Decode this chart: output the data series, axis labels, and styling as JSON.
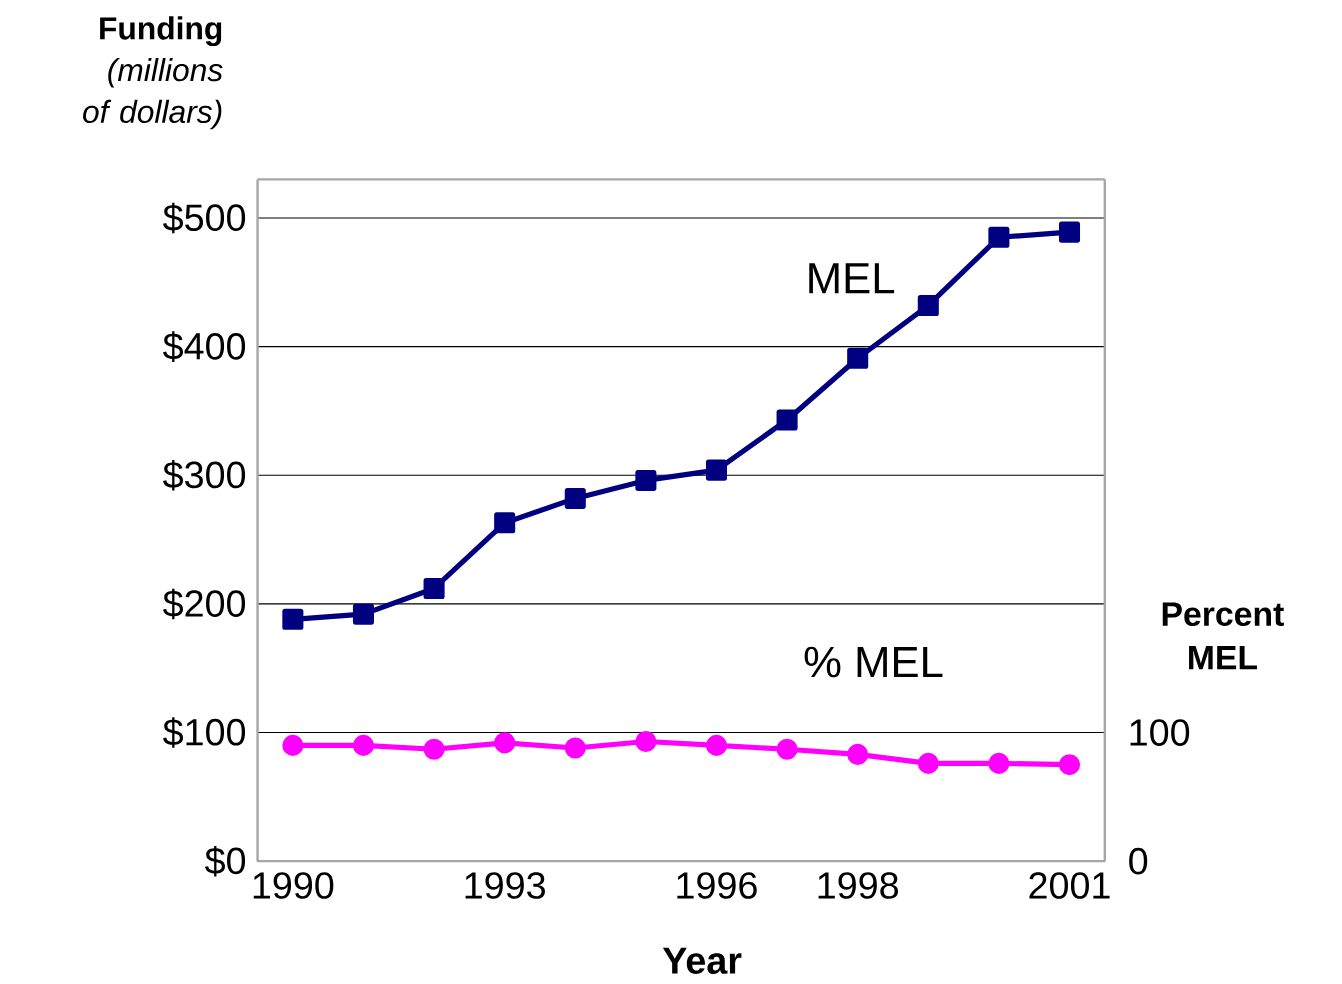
{
  "chart_data": {
    "type": "line",
    "ylabel": "**Funding** *(millions of dollars)*",
    "xlabel": "Year",
    "y2label": "Percent MEL",
    "x": [
      1990,
      1991,
      1992,
      1993,
      1994,
      1995,
      1996,
      1997,
      1998,
      1999,
      2000,
      2001
    ],
    "series": [
      {
        "name": "MEL",
        "color": "#000080",
        "marker": "square",
        "values": [
          188,
          192,
          212,
          263,
          282,
          296,
          304,
          343,
          391,
          432,
          485,
          489
        ]
      },
      {
        "name": "% MEL",
        "color": "#ff00ff",
        "marker": "circle",
        "axis": "y2",
        "values": [
          90,
          90,
          87,
          92,
          88,
          93,
          90,
          87,
          83,
          76,
          76,
          75
        ]
      }
    ],
    "xlim": [
      1989.5,
      2001.5
    ],
    "xticks": [
      1990,
      1993,
      1996,
      1998,
      2001
    ],
    "ylim": [
      0,
      530
    ],
    "yticks": [
      {
        "value": 0,
        "label": "$0"
      },
      {
        "value": 100,
        "label": "$100"
      },
      {
        "value": 200,
        "label": "$200"
      },
      {
        "value": 300,
        "label": "$300"
      },
      {
        "value": 400,
        "label": "$400"
      },
      {
        "value": 500,
        "label": "$500"
      }
    ],
    "y2lim": [
      0,
      530
    ],
    "y2ticks": [
      0,
      100
    ],
    "grid": "y",
    "legend": false,
    "line_style": "solid"
  }
}
